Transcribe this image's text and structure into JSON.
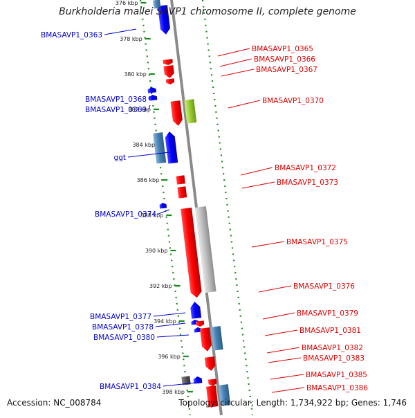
{
  "title": "Burkholderia mallei SAVP1 chromosome II, complete genome",
  "accession": "Accession: NC_008784",
  "topology": "Topology: circular; Length: 1,734,922 bp; Genes: 1,746",
  "colors": {
    "backbone": "#8a8a8a",
    "track_dots": "#1a8a1a",
    "forward_gene": "#ee0000",
    "reverse_gene": "#0000ee",
    "left_label": "#0000cc",
    "right_label": "#dd0000",
    "steelblue_gene": "#4682b4",
    "yellowgreen_gene": "#9acd32",
    "gray_gene": "#bbbbbb",
    "dark_gene": "#555555"
  },
  "kbp_ticks": [
    "376 kbp",
    "378 kbp",
    "380 kbp",
    "382 kbp",
    "384 kbp",
    "386 kbp",
    "388 kbp",
    "390 kbp",
    "392 kbp",
    "394 kbp",
    "396 kbp",
    "398 kbp"
  ],
  "left_labels": [
    "BMASAVP1_0363",
    "BMASAVP1_0368",
    "BMASAVP1_0369",
    "ggt",
    "BMASAVP1_0374",
    "BMASAVP1_0377",
    "BMASAVP1_0378",
    "BMASAVP1_0380",
    "BMASAVP1_0384"
  ],
  "right_labels": [
    "BMASAVP1_0365",
    "BMASAVP1_0366",
    "BMASAVP1_0367",
    "BMASAVP1_0370",
    "BMASAVP1_0372",
    "BMASAVP1_0373",
    "BMASAVP1_0375",
    "BMASAVP1_0376",
    "BMASAVP1_0379",
    "BMASAVP1_0381",
    "BMASAVP1_0382",
    "BMASAVP1_0383",
    "BMASAVP1_0385",
    "BMASAVP1_0386"
  ]
}
